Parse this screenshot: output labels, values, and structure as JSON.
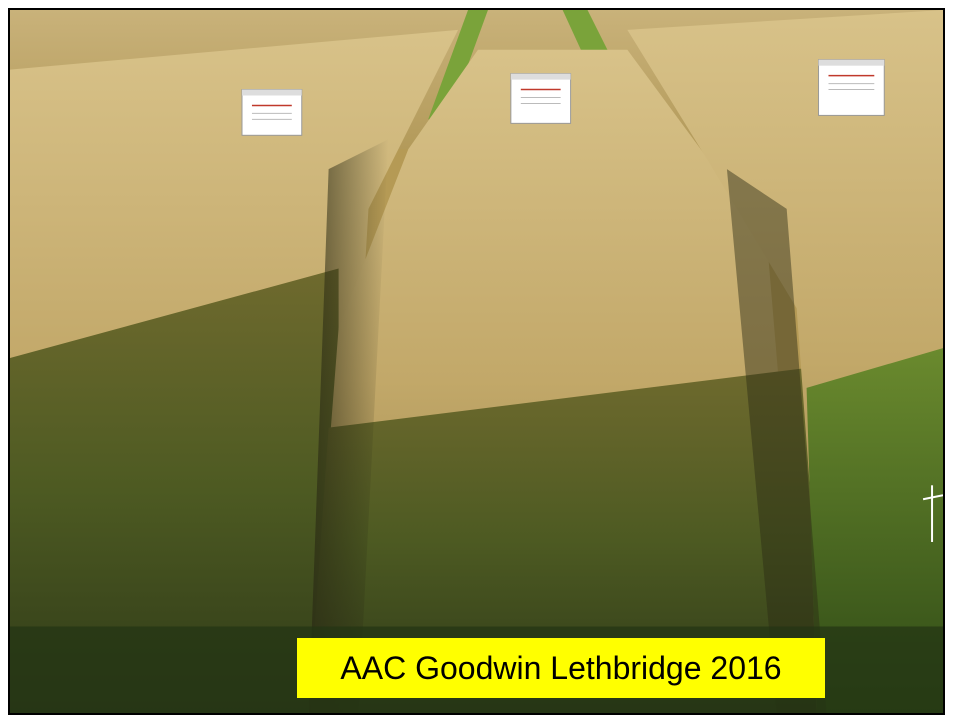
{
  "photo": {
    "subject": "wheat-field-plots",
    "caption": "AAC Goodwin Lethbridge 2016"
  },
  "colors": {
    "caption_bg": "#ffff00",
    "caption_text": "#000000",
    "border": "#000000"
  }
}
